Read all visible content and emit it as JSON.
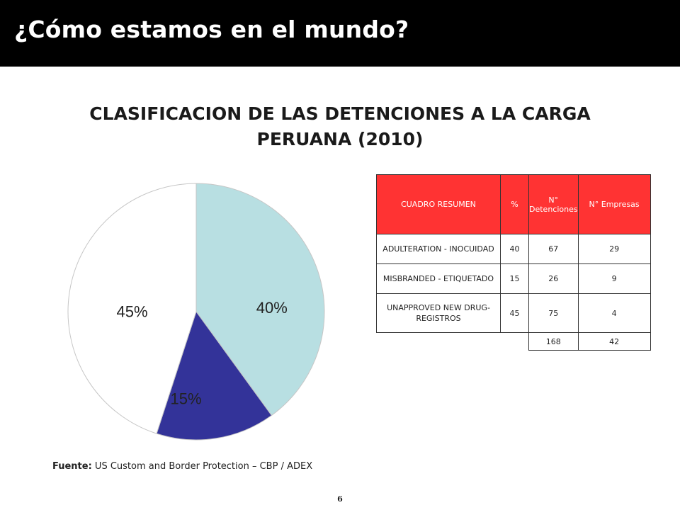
{
  "slide": {
    "title": "¿Cómo estamos en el mundo?",
    "page_number": "6"
  },
  "chart_data": {
    "type": "pie",
    "title": "CLASIFICACION DE LAS DETENCIONES A LA CARGA PERUANA (2010)",
    "slices": [
      {
        "label": "40%",
        "value": 40,
        "color": "#b8dfe2"
      },
      {
        "label": "15%",
        "value": 15,
        "color": "#333399"
      },
      {
        "label": "45%",
        "value": 45,
        "color": "#ffffff"
      }
    ]
  },
  "table": {
    "headers": [
      "CUADRO RESUMEN",
      "%",
      "N° Detenciones",
      "N° Empresas"
    ],
    "rows": [
      {
        "desc": "ADULTERATION - INOCUIDAD",
        "pct": "40",
        "detenciones": "67",
        "empresas": "29"
      },
      {
        "desc": "MISBRANDED - ETIQUETADO",
        "pct": "15",
        "detenciones": "26",
        "empresas": "9"
      },
      {
        "desc": "UNAPPROVED NEW DRUG- REGISTROS",
        "pct": "45",
        "detenciones": "75",
        "empresas": "4"
      }
    ],
    "totals": {
      "detenciones": "168",
      "empresas": "42"
    }
  },
  "source": {
    "label": "Fuente:",
    "text": " US Custom and Border Protection – CBP / ADEX"
  }
}
